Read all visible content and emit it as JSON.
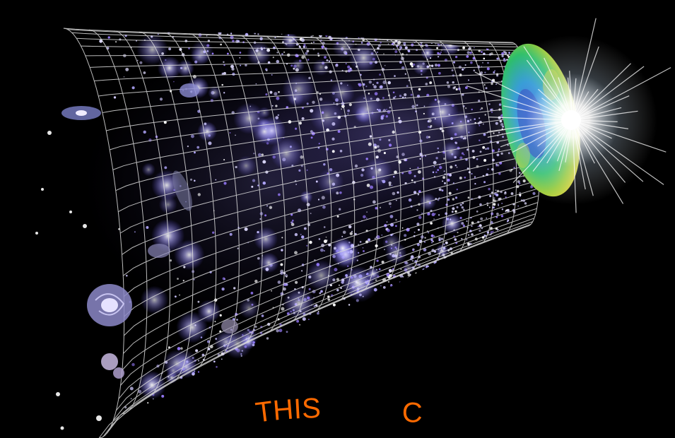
{
  "image": {
    "subject": "cosmic-timeline-illustration",
    "palette": {
      "background": "#000000",
      "grid": "#dcdcdc",
      "galaxy_glow": "#8c82ff",
      "cmb_blue": "#1e4fd8",
      "cmb_green": "#2fbf6a",
      "cmb_yellow": "#d8d23a",
      "flash": "#ffffff",
      "caption": "#ff6a00"
    }
  },
  "caption": {
    "line1": "THIS",
    "line2": "C"
  }
}
